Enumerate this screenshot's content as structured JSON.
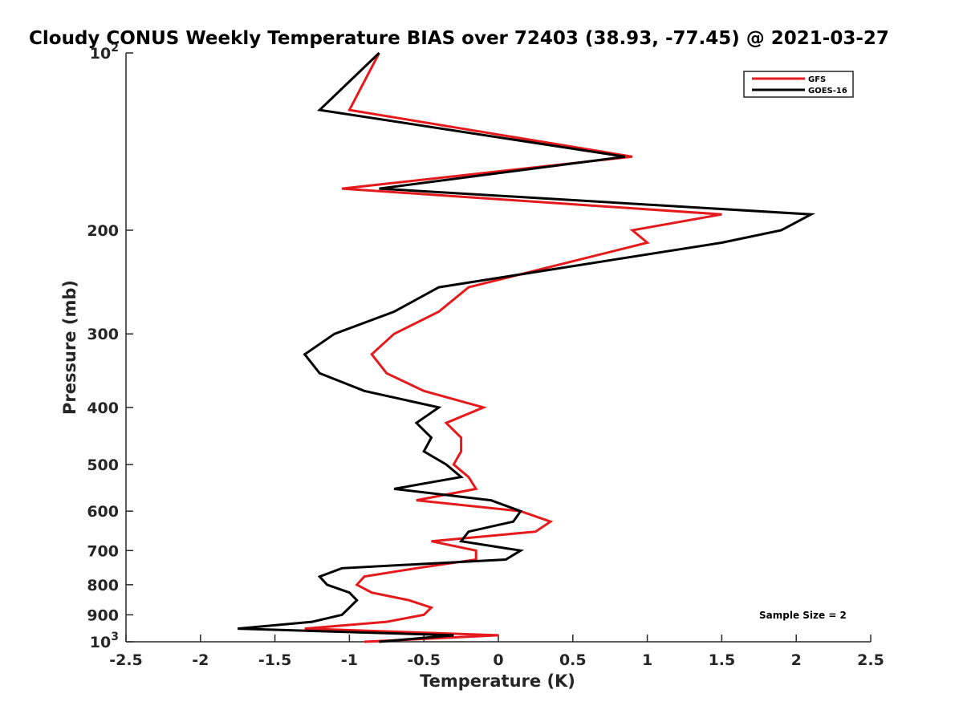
{
  "chart_data": {
    "type": "line",
    "title": "Cloudy CONUS Weekly Temperature BIAS over 72403 (38.93, -77.45) @ 2021-03-27",
    "xlabel": "Temperature (K)",
    "ylabel": "Pressure (mb)",
    "xlim": [
      -2.5,
      2.5
    ],
    "ylim": [
      1000,
      100
    ],
    "y_scale": "log",
    "y_reversed": true,
    "x_ticks": [
      {
        "v": -2.5,
        "label": "-2.5"
      },
      {
        "v": -2,
        "label": "-2"
      },
      {
        "v": -1.5,
        "label": "-1.5"
      },
      {
        "v": -1,
        "label": "-1"
      },
      {
        "v": -0.5,
        "label": "-0.5"
      },
      {
        "v": 0,
        "label": "0"
      },
      {
        "v": 0.5,
        "label": "0.5"
      },
      {
        "v": 1,
        "label": "1"
      },
      {
        "v": 1.5,
        "label": "1.5"
      },
      {
        "v": 2,
        "label": "2"
      },
      {
        "v": 2.5,
        "label": "2.5"
      }
    ],
    "y_ticks": [
      {
        "v": 100,
        "base": "10",
        "exp": "2"
      },
      {
        "v": 200,
        "base": "200",
        "exp": ""
      },
      {
        "v": 300,
        "base": "300",
        "exp": ""
      },
      {
        "v": 400,
        "base": "400",
        "exp": ""
      },
      {
        "v": 500,
        "base": "500",
        "exp": ""
      },
      {
        "v": 600,
        "base": "600",
        "exp": ""
      },
      {
        "v": 700,
        "base": "700",
        "exp": ""
      },
      {
        "v": 800,
        "base": "800",
        "exp": ""
      },
      {
        "v": 900,
        "base": "900",
        "exp": ""
      },
      {
        "v": 1000,
        "base": "10",
        "exp": "3"
      }
    ],
    "grid": false,
    "legend_position": "top-right",
    "annotation": "Sample Size = 2",
    "series": [
      {
        "name": "GFS",
        "color": "#e41a1c",
        "points": [
          [
            -0.8,
            100
          ],
          [
            -1.0,
            125
          ],
          [
            0.9,
            150
          ],
          [
            -1.05,
            170
          ],
          [
            1.5,
            188
          ],
          [
            0.9,
            200
          ],
          [
            1.0,
            210
          ],
          [
            -0.2,
            250
          ],
          [
            -0.4,
            275
          ],
          [
            -0.7,
            300
          ],
          [
            -0.85,
            325
          ],
          [
            -0.75,
            350
          ],
          [
            -0.5,
            375
          ],
          [
            -0.1,
            400
          ],
          [
            -0.35,
            425
          ],
          [
            -0.25,
            450
          ],
          [
            -0.25,
            475
          ],
          [
            -0.3,
            500
          ],
          [
            -0.2,
            525
          ],
          [
            -0.15,
            550
          ],
          [
            -0.55,
            575
          ],
          [
            0.15,
            600
          ],
          [
            0.35,
            625
          ],
          [
            0.25,
            650
          ],
          [
            -0.45,
            675
          ],
          [
            -0.15,
            700
          ],
          [
            -0.15,
            725
          ],
          [
            -0.55,
            750
          ],
          [
            -0.9,
            775
          ],
          [
            -0.95,
            800
          ],
          [
            -0.85,
            825
          ],
          [
            -0.6,
            850
          ],
          [
            -0.45,
            875
          ],
          [
            -0.5,
            900
          ],
          [
            -0.75,
            925
          ],
          [
            -1.3,
            950
          ],
          [
            0.0,
            975
          ],
          [
            -0.9,
            1000
          ]
        ]
      },
      {
        "name": "GOES-16",
        "color": "#000000",
        "points": [
          [
            -0.8,
            100
          ],
          [
            -1.2,
            125
          ],
          [
            0.85,
            150
          ],
          [
            -0.8,
            170
          ],
          [
            2.1,
            188
          ],
          [
            1.9,
            200
          ],
          [
            1.5,
            210
          ],
          [
            -0.4,
            250
          ],
          [
            -0.7,
            275
          ],
          [
            -1.1,
            300
          ],
          [
            -1.3,
            325
          ],
          [
            -1.2,
            350
          ],
          [
            -0.9,
            375
          ],
          [
            -0.4,
            400
          ],
          [
            -0.55,
            425
          ],
          [
            -0.45,
            450
          ],
          [
            -0.5,
            475
          ],
          [
            -0.35,
            500
          ],
          [
            -0.25,
            525
          ],
          [
            -0.7,
            550
          ],
          [
            -0.05,
            575
          ],
          [
            0.15,
            600
          ],
          [
            0.1,
            625
          ],
          [
            -0.2,
            650
          ],
          [
            -0.25,
            675
          ],
          [
            0.15,
            700
          ],
          [
            0.05,
            725
          ],
          [
            -1.05,
            750
          ],
          [
            -1.2,
            775
          ],
          [
            -1.15,
            800
          ],
          [
            -1.0,
            825
          ],
          [
            -0.95,
            850
          ],
          [
            -1.0,
            875
          ],
          [
            -1.05,
            900
          ],
          [
            -1.25,
            925
          ],
          [
            -1.75,
            950
          ],
          [
            -0.3,
            975
          ],
          [
            -0.8,
            1000
          ]
        ]
      }
    ]
  }
}
